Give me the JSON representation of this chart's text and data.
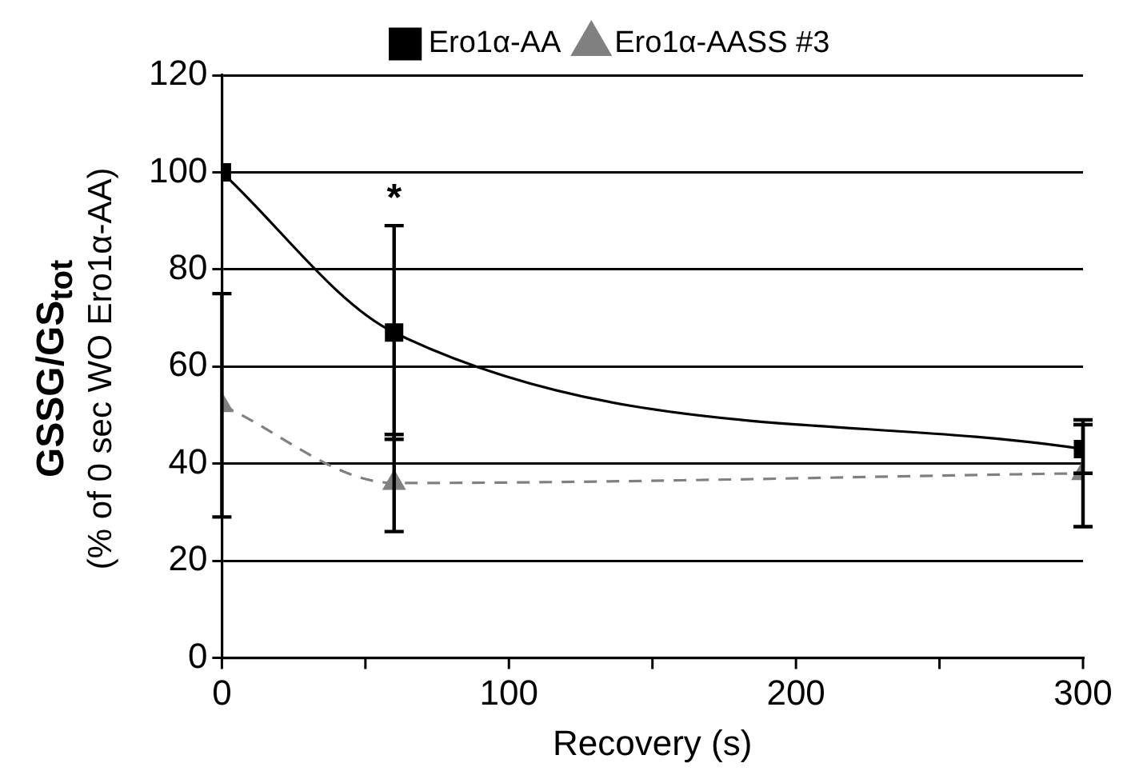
{
  "chart_data": {
    "type": "line",
    "xlabel": "Recovery (s)",
    "ylabel": "GSSG/GS$_{tot}$\n(% of 0 sec WO Ero1α-AA)",
    "x": [
      0,
      60,
      300
    ],
    "series": [
      {
        "name": "Ero1α-AA",
        "color": "#000000",
        "values": [
          100,
          67,
          43
        ],
        "errors": [
          null,
          22,
          5
        ],
        "marker": "square",
        "line_style": "solid"
      },
      {
        "name": "Ero1α-AASS #3",
        "color": "#808080",
        "values": [
          52,
          36,
          38
        ],
        "errors": [
          23,
          10,
          11
        ],
        "marker": "triangle",
        "line_style": "dashed"
      }
    ],
    "xlim": [
      0,
      300
    ],
    "xticks": [
      0,
      {
        "value": 50,
        "label": null
      },
      100,
      {
        "value": 150,
        "label": null
      },
      200,
      {
        "value": 250,
        "label": null
      },
      300
    ],
    "ylim": [
      0,
      120
    ],
    "yticks": [
      0,
      20,
      40,
      60,
      80,
      100,
      120
    ],
    "grid": "y",
    "legend": "top",
    "annotations": [
      {
        "text": "*",
        "x": 60,
        "y": 67
      }
    ]
  }
}
